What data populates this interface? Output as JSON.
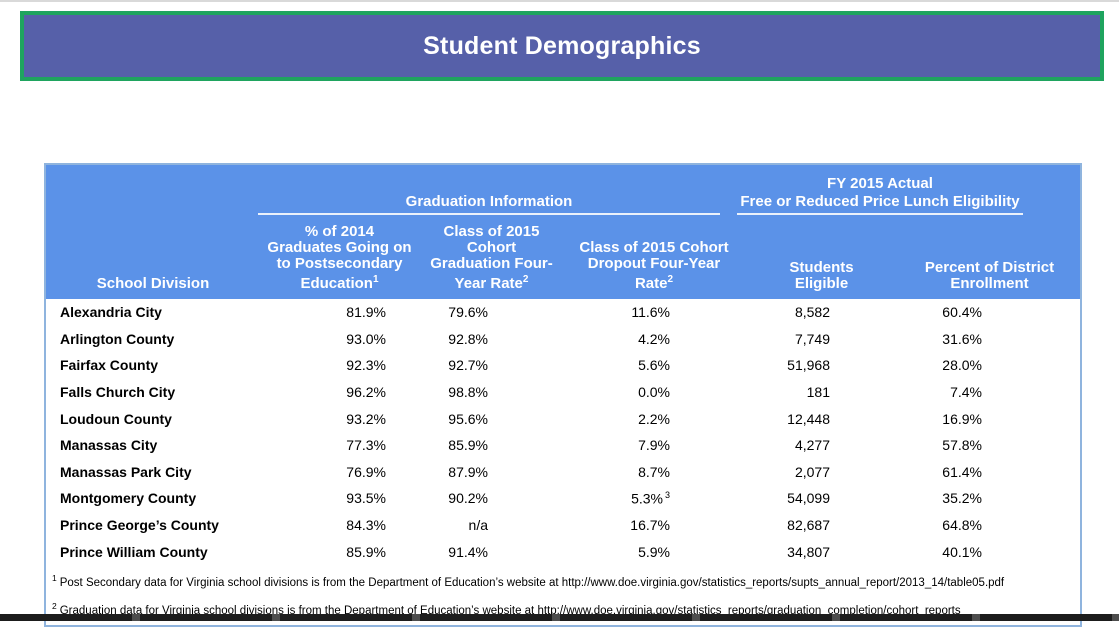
{
  "banner": {
    "title": "Student Demographics",
    "bg_color": "#5660A9",
    "border_color": "#1FA45F"
  },
  "table": {
    "header_bg": "#5B92E8",
    "border_color": "#8FB4DE",
    "groups": [
      {
        "name": "graduation-information",
        "lines": [
          "Graduation Information"
        ]
      },
      {
        "name": "free-reduced-lunch",
        "lines": [
          "FY 2015 Actual",
          "Free or Reduced Price Lunch Eligibility"
        ]
      }
    ],
    "columns": [
      {
        "lines": [
          "School Division"
        ],
        "sup": null
      },
      {
        "lines": [
          "% of 2014",
          "Graduates Going on",
          "to Postsecondary",
          "Education"
        ],
        "sup": "1"
      },
      {
        "lines": [
          "Class of 2015 Cohort",
          "Graduation Four-",
          "Year Rate"
        ],
        "sup": "2"
      },
      {
        "lines": [
          "Class of 2015 Cohort",
          "Dropout Four-Year",
          "Rate"
        ],
        "sup": "2"
      },
      {
        "lines": [
          "Students",
          "Eligible"
        ],
        "sup": null
      },
      {
        "lines": [
          "Percent of District",
          "Enrollment"
        ],
        "sup": null
      }
    ],
    "rows": [
      {
        "division": "Alexandria City",
        "values": [
          "81.9%",
          "79.6%",
          "11.6%",
          "8,582",
          "60.4%"
        ]
      },
      {
        "division": "Arlington County",
        "values": [
          "93.0%",
          "92.8%",
          "4.2%",
          "7,749",
          "31.6%"
        ]
      },
      {
        "division": "Fairfax County",
        "values": [
          "92.3%",
          "92.7%",
          "5.6%",
          "51,968",
          "28.0%"
        ]
      },
      {
        "division": "Falls Church City",
        "values": [
          "96.2%",
          "98.8%",
          "0.0%",
          "181",
          "7.4%"
        ]
      },
      {
        "division": "Loudoun County",
        "values": [
          "93.2%",
          "95.6%",
          "2.2%",
          "12,448",
          "16.9%"
        ]
      },
      {
        "division": "Manassas City",
        "values": [
          "77.3%",
          "85.9%",
          "7.9%",
          "4,277",
          "57.8%"
        ]
      },
      {
        "division": "Manassas Park City",
        "values": [
          "76.9%",
          "87.9%",
          "8.7%",
          "2,077",
          "61.4%"
        ]
      },
      {
        "division": "Montgomery County",
        "values": [
          "93.5%",
          "90.2%",
          "5.3%",
          "54,099",
          "35.2%"
        ],
        "value_sups": {
          "2": "3"
        }
      },
      {
        "division": "Prince George’s County",
        "values": [
          "84.3%",
          "n/a",
          "16.7%",
          "82,687",
          "64.8%"
        ]
      },
      {
        "division": "Prince William County",
        "values": [
          "85.9%",
          "91.4%",
          "5.9%",
          "34,807",
          "40.1%"
        ]
      }
    ],
    "footnotes": [
      {
        "sup": "1",
        "text": "Post Secondary data for Virginia school divisions is from the Department of Education’s website at http://www.doe.virginia.gov/statistics_reports/supts_annual_report/2013_14/table05.pdf"
      },
      {
        "sup": "2",
        "text": "Graduation data for Virginia school divisions is from the Department of Education’s website at http://www.doe.virginia.gov/statistics_reports/graduation_completion/cohort_reports"
      }
    ]
  }
}
